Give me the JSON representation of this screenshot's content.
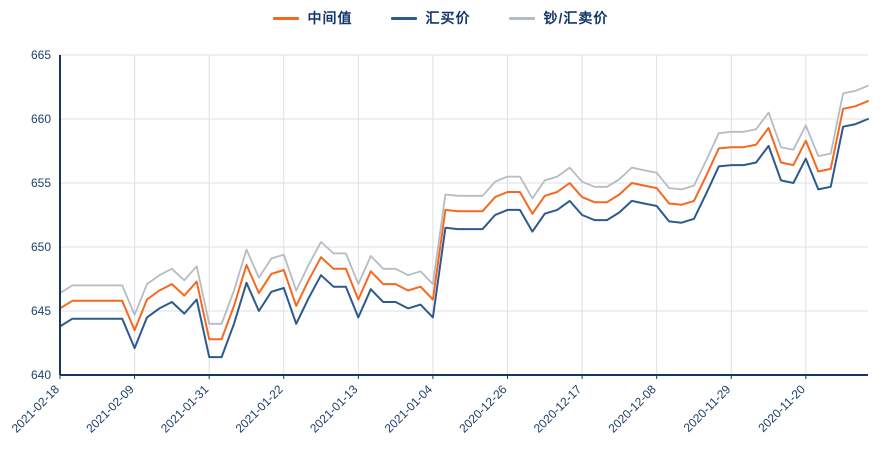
{
  "chart_data": {
    "type": "line",
    "title": "",
    "xlabel": "",
    "ylabel": "",
    "ylim": [
      640,
      665
    ],
    "y_ticks": [
      640,
      645,
      650,
      655,
      660,
      665
    ],
    "grid": true,
    "legend_position": "top",
    "num_points": 66,
    "x_tick_indices": [
      0,
      6,
      12,
      18,
      24,
      30,
      36,
      42,
      48,
      54,
      60
    ],
    "x_tick_labels": [
      "2021-02-18",
      "2021-02-09",
      "2021-01-31",
      "2021-01-22",
      "2021-01-13",
      "2021-01-04",
      "2020-12-26",
      "2020-12-17",
      "2020-12-08",
      "2020-11-29",
      "2020-11-20"
    ],
    "axis": {
      "line_color": "#17365f",
      "label_color": "#1d3f68",
      "grid_color": "#dcdfe2"
    },
    "series": [
      {
        "name": "中间值",
        "color": "#f7681f",
        "values": [
          645.2,
          645.8,
          645.8,
          645.8,
          645.8,
          645.8,
          643.5,
          645.9,
          646.6,
          647.1,
          646.2,
          647.3,
          642.8,
          642.8,
          645.4,
          648.6,
          646.4,
          647.9,
          648.2,
          645.4,
          647.4,
          649.2,
          648.3,
          648.3,
          645.9,
          648.1,
          647.1,
          647.1,
          646.6,
          646.9,
          645.9,
          652.9,
          652.8,
          652.8,
          652.8,
          653.9,
          654.3,
          654.3,
          652.6,
          654.0,
          654.3,
          655.0,
          653.9,
          653.5,
          653.5,
          654.1,
          655.0,
          654.8,
          654.6,
          653.4,
          653.3,
          653.6,
          655.6,
          657.7,
          657.8,
          657.8,
          658.0,
          659.3,
          656.6,
          656.4,
          658.3,
          655.9,
          656.1,
          660.8,
          661.0,
          661.4
        ]
      },
      {
        "name": "汇买价",
        "color": "#2d5a8e",
        "values": [
          643.8,
          644.4,
          644.4,
          644.4,
          644.4,
          644.4,
          642.1,
          644.5,
          645.2,
          645.7,
          644.8,
          645.9,
          641.4,
          641.4,
          644.0,
          647.2,
          645.0,
          646.5,
          646.8,
          644.0,
          646.0,
          647.8,
          646.9,
          646.9,
          644.5,
          646.7,
          645.7,
          645.7,
          645.2,
          645.5,
          644.5,
          651.5,
          651.4,
          651.4,
          651.4,
          652.5,
          652.9,
          652.9,
          651.2,
          652.6,
          652.9,
          653.6,
          652.5,
          652.1,
          652.1,
          652.7,
          653.6,
          653.4,
          653.2,
          652.0,
          651.9,
          652.2,
          654.2,
          656.3,
          656.4,
          656.4,
          656.6,
          657.9,
          655.2,
          655.0,
          656.9,
          654.5,
          654.7,
          659.4,
          659.6,
          660.0
        ]
      },
      {
        "name": "钞/汇卖价",
        "color": "#b5bcc3",
        "values": [
          646.4,
          647.0,
          647.0,
          647.0,
          647.0,
          647.0,
          644.7,
          647.1,
          647.8,
          648.3,
          647.4,
          648.5,
          644.0,
          644.0,
          646.6,
          649.8,
          647.6,
          649.1,
          649.4,
          646.6,
          648.6,
          650.4,
          649.5,
          649.5,
          647.1,
          649.3,
          648.3,
          648.3,
          647.8,
          648.1,
          647.1,
          654.1,
          654.0,
          654.0,
          654.0,
          655.1,
          655.5,
          655.5,
          653.8,
          655.2,
          655.5,
          656.2,
          655.1,
          654.7,
          654.7,
          655.3,
          656.2,
          656.0,
          655.8,
          654.6,
          654.5,
          654.8,
          656.8,
          658.9,
          659.0,
          659.0,
          659.2,
          660.5,
          657.8,
          657.6,
          659.5,
          657.1,
          657.3,
          662.0,
          662.2,
          662.6
        ]
      }
    ]
  }
}
